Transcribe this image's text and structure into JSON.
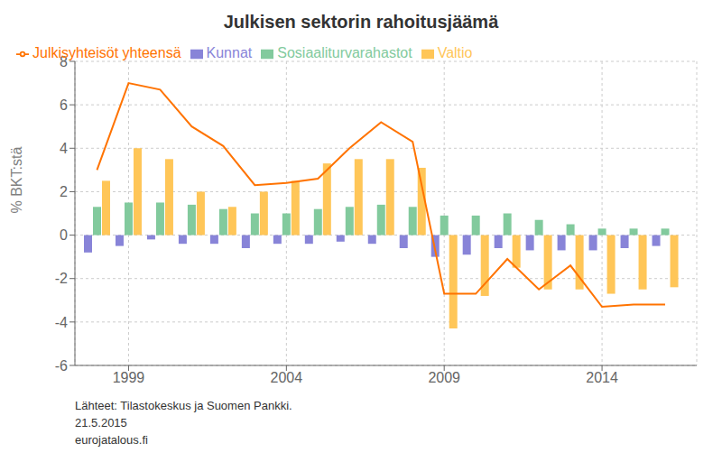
{
  "chart_data": {
    "type": "bar",
    "title": "Julkisen sektorin rahoitusjäämä",
    "ylabel": "% BKT:stä",
    "annotations": [
      "Lähteet: Tilastokeskus ja Suomen Pankki.",
      "21.5.2015",
      "eurojatalous.fi"
    ],
    "x": [
      1998,
      1999,
      2000,
      2001,
      2002,
      2003,
      2004,
      2005,
      2006,
      2007,
      2008,
      2009,
      2010,
      2011,
      2012,
      2013,
      2014,
      2015,
      2016
    ],
    "series": [
      {
        "name": "Kunnat",
        "type": "bar",
        "color": "#8884d8",
        "values": [
          -0.8,
          -0.5,
          -0.2,
          -0.4,
          -0.4,
          -0.6,
          -0.4,
          -0.4,
          -0.3,
          -0.4,
          -0.6,
          -1.0,
          -0.9,
          -0.6,
          -0.7,
          -0.7,
          -0.7,
          -0.6,
          -0.5
        ]
      },
      {
        "name": "Sosiaaliturvarahastot",
        "type": "bar",
        "color": "#82ca9d",
        "values": [
          1.3,
          1.5,
          1.5,
          1.4,
          1.2,
          1.0,
          1.0,
          1.2,
          1.3,
          1.4,
          1.3,
          0.9,
          0.9,
          1.0,
          0.7,
          0.5,
          0.3,
          0.3,
          0.3
        ]
      },
      {
        "name": "Valtio",
        "type": "bar",
        "color": "#ffc658",
        "values": [
          2.5,
          4.0,
          3.5,
          2.0,
          1.3,
          2.0,
          2.5,
          3.3,
          3.5,
          3.5,
          3.1,
          -4.3,
          -2.8,
          -1.5,
          -2.5,
          -2.5,
          -2.7,
          -2.5,
          -2.4
        ]
      },
      {
        "name": "Julkisyhteisöt yhteensä",
        "type": "line",
        "color": "#ff7300",
        "values": [
          3.0,
          7.0,
          6.7,
          5.0,
          4.1,
          2.3,
          2.4,
          2.6,
          4.0,
          5.2,
          4.3,
          -2.7,
          -2.7,
          -1.1,
          -2.5,
          -1.4,
          -3.3,
          -3.2,
          -3.2
        ]
      }
    ],
    "xlim": [
      1997.3,
      2017.0
    ],
    "xticks": [
      1999,
      2004,
      2009,
      2014
    ],
    "ylim": [
      -6,
      8
    ],
    "yticks": [
      -6,
      -4,
      -2,
      0,
      2,
      4,
      6,
      8
    ],
    "grid": true,
    "legend": "upper left"
  }
}
